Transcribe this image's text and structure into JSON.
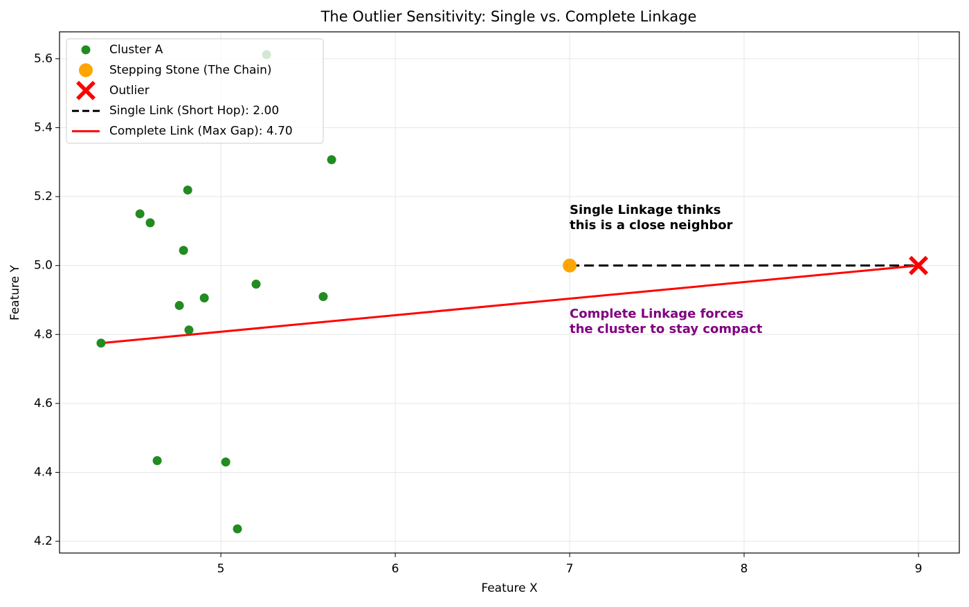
{
  "chart_data": {
    "type": "scatter",
    "title": "The Outlier Sensitivity: Single vs. Complete Linkage",
    "xlabel": "Feature X",
    "ylabel": "Feature Y",
    "xlim": [
      4.075,
      9.234
    ],
    "ylim": [
      4.166,
      5.678
    ],
    "xticks": [
      5,
      6,
      7,
      8,
      9
    ],
    "yticks": [
      4.2,
      4.4,
      4.6,
      4.8,
      {
        "value": 5,
        "label": "5.0"
      },
      5.2,
      5.4,
      5.6
    ],
    "grid": true,
    "legend": "upper left",
    "series": [
      {
        "name": "Cluster A",
        "color": "#228b22",
        "marker": "o",
        "x": [
          5.262,
          5.635,
          4.81,
          4.536,
          4.595,
          4.786,
          5.202,
          4.905,
          5.587,
          4.762,
          4.817,
          4.313,
          4.635,
          5.028,
          5.095
        ],
        "values": [
          5.612,
          5.307,
          5.219,
          5.15,
          5.124,
          5.044,
          4.946,
          4.906,
          4.91,
          4.884,
          4.813,
          4.775,
          4.434,
          4.43,
          4.236
        ]
      },
      {
        "name": "Stepping Stone (The Chain)",
        "color": "#ffa500",
        "marker": "o",
        "x": [
          7
        ],
        "values": [
          5
        ]
      },
      {
        "name": "Outlier",
        "color": "#ff0000",
        "marker": "X",
        "x": [
          9
        ],
        "values": [
          5
        ]
      },
      {
        "name": "Single Link (Short Hop): 2.00",
        "color": "#000000",
        "marker": "line",
        "linestyle": "dashed",
        "x": [
          7,
          9
        ],
        "values": [
          5,
          5
        ]
      },
      {
        "name": "Complete Link (Max Gap): 4.70",
        "color": "#ff0000",
        "marker": "line",
        "linestyle": "solid",
        "x": [
          4.313,
          9
        ],
        "values": [
          4.775,
          5
        ]
      }
    ],
    "annotations": [
      {
        "lines": [
          "Single Linkage thinks",
          "this is a close neighbor"
        ],
        "color": "#000000"
      },
      {
        "lines": [
          "Complete Linkage forces",
          "the cluster to stay compact"
        ],
        "color": "#800080"
      }
    ]
  }
}
